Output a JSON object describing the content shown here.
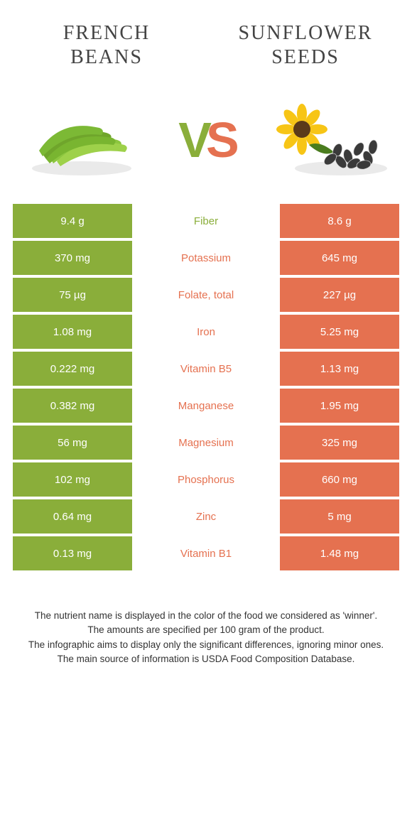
{
  "header": {
    "left_title_line1": "FRENCH",
    "left_title_line2": "BEANS",
    "right_title_line1": "SUNFLOWER",
    "right_title_line2": "SEEDS"
  },
  "vs": {
    "v": "V",
    "s": "S"
  },
  "colors": {
    "left": "#8aae3a",
    "right": "#e57150",
    "background": "#ffffff",
    "text": "#333333"
  },
  "comparison": {
    "rows": [
      {
        "left": "9.4 g",
        "label": "Fiber",
        "winner": "left",
        "right": "8.6 g"
      },
      {
        "left": "370 mg",
        "label": "Potassium",
        "winner": "right",
        "right": "645 mg"
      },
      {
        "left": "75 µg",
        "label": "Folate, total",
        "winner": "right",
        "right": "227 µg"
      },
      {
        "left": "1.08 mg",
        "label": "Iron",
        "winner": "right",
        "right": "5.25 mg"
      },
      {
        "left": "0.222 mg",
        "label": "Vitamin B5",
        "winner": "right",
        "right": "1.13 mg"
      },
      {
        "left": "0.382 mg",
        "label": "Manganese",
        "winner": "right",
        "right": "1.95 mg"
      },
      {
        "left": "56 mg",
        "label": "Magnesium",
        "winner": "right",
        "right": "325 mg"
      },
      {
        "left": "102 mg",
        "label": "Phosphorus",
        "winner": "right",
        "right": "660 mg"
      },
      {
        "left": "0.64 mg",
        "label": "Zinc",
        "winner": "right",
        "right": "5 mg"
      },
      {
        "left": "0.13 mg",
        "label": "Vitamin B1",
        "winner": "right",
        "right": "1.48 mg"
      }
    ]
  },
  "footnotes": {
    "line1": "The nutrient name is displayed in the color of the food we considered as 'winner'.",
    "line2": "The amounts are specified per 100 gram of the product.",
    "line3": "The infographic aims to display only the significant differences, ignoring minor ones.",
    "line4": "The main source of information is USDA Food Composition Database."
  }
}
